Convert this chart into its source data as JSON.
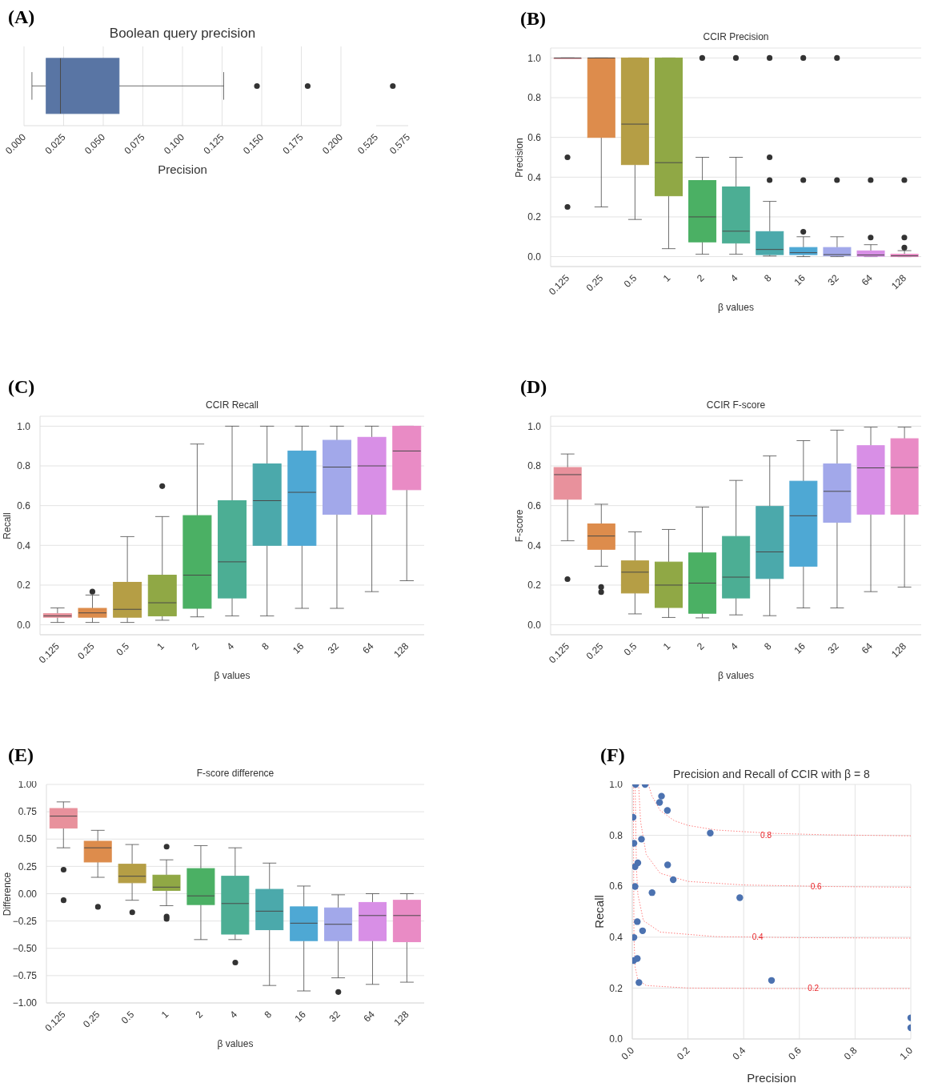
{
  "chart_data": [
    {
      "type": "box",
      "orientation": "horizontal",
      "title": "Boolean query precision",
      "xlabel": "Precision",
      "annotations": [
        "(A)"
      ],
      "categories": [
        null
      ],
      "color": "#5975a4",
      "boxes": [
        {
          "low": 0.005,
          "q1": 0.014,
          "median": 0.023,
          "q3": 0.06,
          "high": 0.126,
          "outliers": [
            0.147,
            0.179
          ]
        }
      ],
      "xlim": [
        0,
        0.2
      ],
      "xticks": [
        {
          "value": 0,
          "label": "0.000"
        },
        {
          "value": 0.025,
          "label": "0.025"
        },
        {
          "value": 0.05,
          "label": "0.050"
        },
        {
          "value": 0.075,
          "label": "0.075"
        },
        {
          "value": 0.1,
          "label": "0.100"
        },
        {
          "value": 0.125,
          "label": "0.125"
        },
        {
          "value": 0.15,
          "label": "0.150"
        },
        {
          "value": 0.175,
          "label": "0.175"
        },
        {
          "value": 0.2,
          "label": "0.200"
        }
      ],
      "grid": "x",
      "tick_labels": "x"
    },
    {
      "type": "scatter",
      "orientation": "horizontal",
      "categories": [
        null
      ],
      "values": [
        0.551
      ],
      "color": "#333333",
      "xlim": [
        0.525,
        0.575
      ],
      "xticks": [
        0.525,
        0.575
      ],
      "tick_labels": "x"
    },
    {
      "type": "box",
      "title": "CCIR Precision",
      "xlabel": "β values",
      "ylabel": "Precision",
      "annotations": [
        "(B)"
      ],
      "categories": [
        "0.125",
        "0.25",
        "0.5",
        "1",
        "2",
        "4",
        "8",
        "16",
        "32",
        "64",
        "128"
      ],
      "colors": [
        "#e8919c",
        "#dd8c4c",
        "#b59e45",
        "#90a845",
        "#4bb064",
        "#4cae94",
        "#4ba9ab",
        "#4ea8d4",
        "#a2a8ea",
        "#d88fe6",
        "#e98bc5"
      ],
      "boxes": [
        {
          "low": 1,
          "q1": 1,
          "median": 1,
          "q3": 1,
          "high": 1,
          "outliers": [
            0.5,
            0.25
          ]
        },
        {
          "low": 0.25,
          "q1": 0.6,
          "median": 1,
          "q3": 1,
          "high": 1
        },
        {
          "low": 0.187,
          "q1": 0.463,
          "median": 0.667,
          "q3": 1,
          "high": 1
        },
        {
          "low": 0.04,
          "q1": 0.306,
          "median": 0.473,
          "q3": 1,
          "high": 1
        },
        {
          "low": 0.012,
          "q1": 0.074,
          "median": 0.2,
          "q3": 0.383,
          "high": 0.5,
          "outliers": [
            1
          ]
        },
        {
          "low": 0.012,
          "q1": 0.068,
          "median": 0.128,
          "q3": 0.351,
          "high": 0.5,
          "outliers": [
            1
          ]
        },
        {
          "low": 0.003,
          "q1": 0.01,
          "median": 0.036,
          "q3": 0.126,
          "high": 0.278,
          "outliers": [
            0.385,
            0.5,
            1
          ]
        },
        {
          "low": 0,
          "q1": 0.01,
          "median": 0.02,
          "q3": 0.046,
          "high": 0.1,
          "outliers": [
            0.125,
            0.385,
            1
          ]
        },
        {
          "low": 0,
          "q1": 0.004,
          "median": 0.01,
          "q3": 0.046,
          "high": 0.1,
          "outliers": [
            0.385,
            1
          ]
        },
        {
          "low": 0,
          "q1": 0.002,
          "median": 0.008,
          "q3": 0.029,
          "high": 0.06,
          "outliers": [
            0.096,
            0.385
          ]
        },
        {
          "low": 0,
          "q1": 0,
          "median": 0.004,
          "q3": 0.012,
          "high": 0.03,
          "outliers": [
            0.045,
            0.096,
            0.385
          ]
        }
      ],
      "ylim": [
        -0.05,
        1.05
      ],
      "yticks": [
        {
          "value": 0,
          "label": "0.0"
        },
        {
          "value": 0.2,
          "label": "0.2"
        },
        {
          "value": 0.4,
          "label": "0.4"
        },
        {
          "value": 0.6,
          "label": "0.6"
        },
        {
          "value": 0.8,
          "label": "0.8"
        },
        {
          "value": 1,
          "label": "1.0"
        }
      ],
      "grid": "y"
    },
    {
      "type": "box",
      "title": "CCIR Recall",
      "xlabel": "β values",
      "ylabel": "Recall",
      "annotations": [
        "(C)"
      ],
      "categories": [
        "0.125",
        "0.25",
        "0.5",
        "1",
        "2",
        "4",
        "8",
        "16",
        "32",
        "64",
        "128"
      ],
      "colors": [
        "#e8919c",
        "#dd8c4c",
        "#b59e45",
        "#90a845",
        "#4bb064",
        "#4cae94",
        "#4ba9ab",
        "#4ea8d4",
        "#a2a8ea",
        "#d88fe6",
        "#e98bc5"
      ],
      "boxes": [
        {
          "low": 0.012,
          "q1": 0.038,
          "median": 0.045,
          "q3": 0.056,
          "high": 0.085
        },
        {
          "low": 0.012,
          "q1": 0.038,
          "median": 0.06,
          "q3": 0.083,
          "high": 0.15,
          "outliers": [
            0.167
          ]
        },
        {
          "low": 0.012,
          "q1": 0.038,
          "median": 0.078,
          "q3": 0.214,
          "high": 0.444
        },
        {
          "low": 0.023,
          "q1": 0.045,
          "median": 0.111,
          "q3": 0.25,
          "high": 0.545,
          "outliers": [
            0.698
          ]
        },
        {
          "low": 0.04,
          "q1": 0.083,
          "median": 0.25,
          "q3": 0.55,
          "high": 0.91
        },
        {
          "low": 0.045,
          "q1": 0.135,
          "median": 0.317,
          "q3": 0.625,
          "high": 1
        },
        {
          "low": 0.045,
          "q1": 0.4,
          "median": 0.625,
          "q3": 0.81,
          "high": 1
        },
        {
          "low": 0.083,
          "q1": 0.4,
          "median": 0.667,
          "q3": 0.875,
          "high": 1
        },
        {
          "low": 0.083,
          "q1": 0.556,
          "median": 0.794,
          "q3": 0.929,
          "high": 1
        },
        {
          "low": 0.167,
          "q1": 0.556,
          "median": 0.8,
          "q3": 0.944,
          "high": 1
        },
        {
          "low": 0.222,
          "q1": 0.68,
          "median": 0.875,
          "q3": 1,
          "high": 1
        }
      ],
      "ylim": [
        -0.05,
        1.05
      ],
      "yticks": [
        {
          "value": 0,
          "label": "0.0"
        },
        {
          "value": 0.2,
          "label": "0.2"
        },
        {
          "value": 0.4,
          "label": "0.4"
        },
        {
          "value": 0.6,
          "label": "0.6"
        },
        {
          "value": 0.8,
          "label": "0.8"
        },
        {
          "value": 1,
          "label": "1.0"
        }
      ],
      "grid": "y"
    },
    {
      "type": "box",
      "title": "CCIR F-score",
      "xlabel": "β values",
      "ylabel": "F-score",
      "annotations": [
        "(D)"
      ],
      "categories": [
        "0.125",
        "0.25",
        "0.5",
        "1",
        "2",
        "4",
        "8",
        "16",
        "32",
        "64",
        "128"
      ],
      "colors": [
        "#e8919c",
        "#dd8c4c",
        "#b59e45",
        "#90a845",
        "#4bb064",
        "#4cae94",
        "#4ba9ab",
        "#4ea8d4",
        "#a2a8ea",
        "#d88fe6",
        "#e98bc5"
      ],
      "boxes": [
        {
          "low": 0.423,
          "q1": 0.632,
          "median": 0.756,
          "q3": 0.792,
          "high": 0.86,
          "outliers": [
            0.23
          ]
        },
        {
          "low": 0.295,
          "q1": 0.38,
          "median": 0.447,
          "q3": 0.508,
          "high": 0.607,
          "outliers": [
            0.19,
            0.165
          ]
        },
        {
          "low": 0.055,
          "q1": 0.16,
          "median": 0.265,
          "q3": 0.322,
          "high": 0.468
        },
        {
          "low": 0.037,
          "q1": 0.087,
          "median": 0.2,
          "q3": 0.316,
          "high": 0.48
        },
        {
          "low": 0.035,
          "q1": 0.058,
          "median": 0.21,
          "q3": 0.362,
          "high": 0.593
        },
        {
          "low": 0.05,
          "q1": 0.135,
          "median": 0.24,
          "q3": 0.445,
          "high": 0.727
        },
        {
          "low": 0.046,
          "q1": 0.233,
          "median": 0.367,
          "q3": 0.596,
          "high": 0.85
        },
        {
          "low": 0.085,
          "q1": 0.295,
          "median": 0.549,
          "q3": 0.723,
          "high": 0.927
        },
        {
          "low": 0.085,
          "q1": 0.516,
          "median": 0.672,
          "q3": 0.81,
          "high": 0.98
        },
        {
          "low": 0.167,
          "q1": 0.557,
          "median": 0.79,
          "q3": 0.902,
          "high": 0.995
        },
        {
          "low": 0.19,
          "q1": 0.557,
          "median": 0.792,
          "q3": 0.937,
          "high": 0.995
        }
      ],
      "ylim": [
        -0.05,
        1.05
      ],
      "yticks": [
        {
          "value": 0,
          "label": "0.0"
        },
        {
          "value": 0.2,
          "label": "0.2"
        },
        {
          "value": 0.4,
          "label": "0.4"
        },
        {
          "value": 0.6,
          "label": "0.6"
        },
        {
          "value": 0.8,
          "label": "0.8"
        },
        {
          "value": 1,
          "label": "1.0"
        }
      ],
      "grid": "y"
    },
    {
      "type": "box",
      "title": "F-score difference",
      "xlabel": "β values",
      "ylabel": "Difference",
      "annotations": [
        "(E)"
      ],
      "categories": [
        "0.125",
        "0.25",
        "0.5",
        "1",
        "2",
        "4",
        "8",
        "16",
        "32",
        "64",
        "128"
      ],
      "colors": [
        "#e8919c",
        "#dd8c4c",
        "#b59e45",
        "#90a845",
        "#4bb064",
        "#4cae94",
        "#4ba9ab",
        "#4ea8d4",
        "#a2a8ea",
        "#d88fe6",
        "#e98bc5"
      ],
      "boxes": [
        {
          "low": 0.42,
          "q1": 0.6,
          "median": 0.71,
          "q3": 0.78,
          "high": 0.84,
          "outliers": [
            0.22,
            -0.06
          ]
        },
        {
          "low": 0.15,
          "q1": 0.29,
          "median": 0.42,
          "q3": 0.48,
          "high": 0.58,
          "outliers": [
            -0.12
          ]
        },
        {
          "low": -0.06,
          "q1": 0.1,
          "median": 0.16,
          "q3": 0.27,
          "high": 0.45,
          "outliers": [
            -0.17
          ]
        },
        {
          "low": -0.11,
          "q1": 0.03,
          "median": 0.06,
          "q3": 0.17,
          "high": 0.31,
          "outliers": [
            0.43,
            -0.21,
            -0.23
          ]
        },
        {
          "low": -0.42,
          "q1": -0.1,
          "median": -0.02,
          "q3": 0.23,
          "high": 0.44
        },
        {
          "low": -0.42,
          "q1": -0.37,
          "median": -0.09,
          "q3": 0.16,
          "high": 0.42,
          "outliers": [
            -0.63
          ]
        },
        {
          "low": -0.84,
          "q1": -0.33,
          "median": -0.16,
          "q3": 0.04,
          "high": 0.28
        },
        {
          "low": -0.89,
          "q1": -0.43,
          "median": -0.27,
          "q3": -0.12,
          "high": 0.07
        },
        {
          "low": -0.77,
          "q1": -0.43,
          "median": -0.28,
          "q3": -0.13,
          "high": -0.01,
          "outliers": [
            -0.9
          ]
        },
        {
          "low": -0.83,
          "q1": -0.43,
          "median": -0.2,
          "q3": -0.08,
          "high": 0
        },
        {
          "low": -0.81,
          "q1": -0.44,
          "median": -0.2,
          "q3": -0.06,
          "high": 0
        }
      ],
      "ylim": [
        -1,
        1
      ],
      "yticks": [
        {
          "value": -1,
          "label": "−1.00"
        },
        {
          "value": -0.75,
          "label": "−0.75"
        },
        {
          "value": -0.5,
          "label": "−0.50"
        },
        {
          "value": -0.25,
          "label": "−0.25"
        },
        {
          "value": 0,
          "label": "0.00"
        },
        {
          "value": 0.25,
          "label": "0.25"
        },
        {
          "value": 0.5,
          "label": "0.50"
        },
        {
          "value": 0.75,
          "label": "0.75"
        },
        {
          "value": 1,
          "label": "1.00"
        }
      ],
      "grid": "y"
    },
    {
      "type": "scatter",
      "title": "Precision and Recall of CCIR with β = 8",
      "xlabel": "Precision",
      "ylabel": "Recall",
      "xlim": [
        0,
        1
      ],
      "ylim": [
        0,
        1
      ],
      "xticks": [
        {
          "value": 0,
          "label": "0.0"
        },
        {
          "value": 0.2,
          "label": "0.2"
        },
        {
          "value": 0.4,
          "label": "0.4"
        },
        {
          "value": 0.6,
          "label": "0.6"
        },
        {
          "value": 0.8,
          "label": "0.8"
        },
        {
          "value": 1,
          "label": "1.0"
        }
      ],
      "yticks": [
        {
          "value": 0,
          "label": "0.0"
        },
        {
          "value": 0.2,
          "label": "0.2"
        },
        {
          "value": 0.4,
          "label": "0.4"
        },
        {
          "value": 0.6,
          "label": "0.6"
        },
        {
          "value": 0.8,
          "label": "0.8"
        },
        {
          "value": 1,
          "label": "1.0"
        }
      ],
      "grid": true,
      "annotations": [
        "(F)",
        {
          "text": "0.8",
          "x": 0.48,
          "y": 0.8
        },
        {
          "text": "0.6",
          "x": 0.66,
          "y": 0.6
        },
        {
          "text": "0.4",
          "x": 0.45,
          "y": 0.4
        },
        {
          "text": "0.2",
          "x": 0.65,
          "y": 0.2
        }
      ],
      "series": [
        {
          "type": "scatter",
          "color": "#4c72b0",
          "x": [
            0.012,
            0.046,
            0.105,
            0.098,
            0.126,
            0.003,
            0.28,
            0.006,
            0.033,
            0.02,
            0.01,
            0.127,
            0.147,
            0.01,
            0.071,
            0.386,
            0.018,
            0.037,
            0.006,
            0.005,
            0.018,
            0.024,
            0.5,
            1,
            1
          ],
          "values": [
            1,
            1,
            0.954,
            0.929,
            0.898,
            0.871,
            0.809,
            0.769,
            0.785,
            0.692,
            0.677,
            0.684,
            0.626,
            0.599,
            0.575,
            0.555,
            0.461,
            0.425,
            0.399,
            0.308,
            0.316,
            0.222,
            0.23,
            0.083,
            0.044
          ]
        },
        {
          "type": "line",
          "line_style": "dotted",
          "color": "#ff8080",
          "x": [
            0.058,
            0.07,
            0.1,
            0.15,
            0.2,
            0.3,
            0.5,
            0.7,
            1
          ],
          "values": [
            1,
            0.956,
            0.898,
            0.858,
            0.839,
            0.821,
            0.808,
            0.802,
            0.798
          ]
        },
        {
          "type": "line",
          "line_style": "dotted",
          "color": "#ff8080",
          "x": [
            0.0226,
            0.03,
            0.05,
            0.1,
            0.2,
            0.4,
            0.7,
            1
          ],
          "values": [
            1,
            0.853,
            0.725,
            0.651,
            0.619,
            0.605,
            0.599,
            0.596
          ]
        },
        {
          "type": "line",
          "line_style": "dotted",
          "color": "#ff8080",
          "x": [
            0.0102,
            0.015,
            0.02,
            0.04,
            0.1,
            0.3,
            0.6,
            1
          ],
          "values": [
            1,
            0.668,
            0.569,
            0.465,
            0.42,
            0.402,
            0.398,
            0.396
          ]
        },
        {
          "type": "line",
          "line_style": "dotted",
          "color": "#ff8080",
          "x": [
            0.0038,
            0.006,
            0.01,
            0.02,
            0.05,
            0.2,
            0.5,
            1
          ],
          "values": [
            1,
            0.404,
            0.284,
            0.233,
            0.21,
            0.2,
            0.198,
            0.198
          ]
        }
      ]
    }
  ]
}
